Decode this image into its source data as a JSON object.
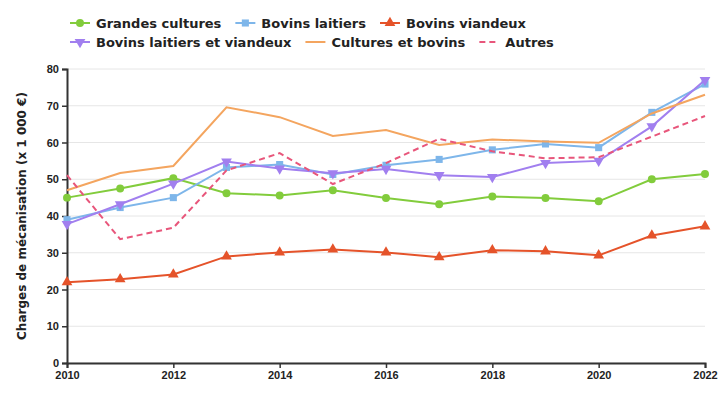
{
  "chart_data": {
    "type": "line",
    "y_label": "Charges de mécanisation (x 1 000 €)",
    "x": [
      2010,
      2011,
      2012,
      2013,
      2014,
      2015,
      2016,
      2017,
      2018,
      2019,
      2020,
      2021,
      2022
    ],
    "xlim": [
      2010,
      2022
    ],
    "xticks": [
      2010,
      2012,
      2014,
      2016,
      2018,
      2020,
      2022
    ],
    "ylim": [
      0,
      80
    ],
    "yticks": [
      0,
      10,
      20,
      30,
      40,
      50,
      60,
      70,
      80
    ],
    "grid": true,
    "legend": "top",
    "series": [
      {
        "name": "Grandes cultures",
        "color": "#82cc3c",
        "marker": "circle",
        "line_style": "solid",
        "values": [
          45,
          47.5,
          50.3,
          46.2,
          45.6,
          47,
          44.9,
          43.2,
          45.3,
          44.9,
          44,
          50,
          51.4
        ]
      },
      {
        "name": "Bovins laitiers",
        "color": "#7eb6ea",
        "marker": "square",
        "line_style": "solid",
        "values": [
          39,
          42.3,
          45,
          53.2,
          54,
          51.3,
          53.8,
          55.4,
          58,
          59.6,
          58.6,
          68.2,
          75.9
        ]
      },
      {
        "name": "Bovins viandeux",
        "color": "#e5532a",
        "marker": "triangle",
        "line_style": "solid",
        "values": [
          22,
          22.8,
          24.1,
          29,
          30.1,
          30.9,
          30.1,
          28.8,
          30.7,
          30.4,
          29.3,
          34.7,
          37.2
        ]
      },
      {
        "name": "Bovins laitiers et viandeux",
        "color": "#a17fef",
        "marker": "triangle-down",
        "line_style": "solid",
        "values": [
          37.8,
          43.2,
          48.8,
          54.8,
          52.9,
          51.6,
          52.8,
          51.1,
          50.6,
          54.4,
          55,
          64.4,
          77
        ]
      },
      {
        "name": "Cultures et bovins",
        "color": "#f4a55f",
        "marker": "none",
        "line_style": "solid",
        "values": [
          47,
          51.7,
          53.6,
          69.6,
          66.9,
          61.8,
          63.4,
          59.3,
          60.8,
          60.3,
          59.9,
          67.9,
          73
        ]
      },
      {
        "name": "Autres",
        "color": "#e8567b",
        "marker": "none",
        "line_style": "dashed",
        "values": [
          51.1,
          33.7,
          36.8,
          52.4,
          57.1,
          48.7,
          54.4,
          61,
          57.6,
          55.7,
          56,
          61.6,
          67.2
        ]
      }
    ]
  }
}
